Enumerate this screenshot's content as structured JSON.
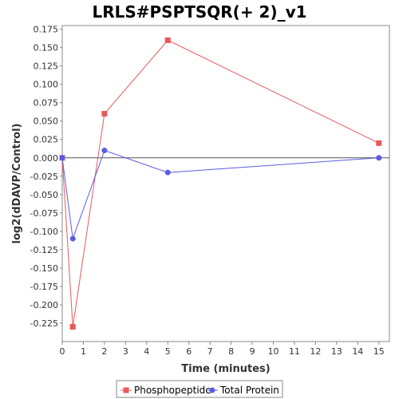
{
  "chart_data": {
    "type": "line",
    "title": "LRLS#PSPTSQR(+ 2)_v1",
    "xlabel": "Time (minutes)",
    "ylabel": "log2(dDAVP/Control)",
    "xlim": [
      0,
      15.5
    ],
    "ylim": [
      -0.25,
      0.18
    ],
    "x_ticks": [
      "0",
      "1",
      "2",
      "3",
      "4",
      "5",
      "6",
      "7",
      "8",
      "9",
      "10",
      "11",
      "12",
      "13",
      "14",
      "15"
    ],
    "y_ticks": [
      "0.175",
      "0.150",
      "0.125",
      "0.100",
      "0.075",
      "0.050",
      "0.025",
      "0.000",
      "-0.025",
      "-0.050",
      "-0.075",
      "-0.100",
      "-0.125",
      "-0.150",
      "-0.175",
      "-0.200",
      "-0.225"
    ],
    "grid": false,
    "legend_position": "bottom",
    "series": [
      {
        "name": "Phosphopeptide",
        "color": "#e8595a",
        "marker": "square",
        "x": [
          0,
          0.5,
          2,
          5,
          15
        ],
        "y": [
          0.0,
          -0.23,
          0.06,
          0.16,
          0.02
        ]
      },
      {
        "name": "Total Protein",
        "color": "#5b5be8",
        "marker": "circle",
        "x": [
          0,
          0.5,
          2,
          5,
          15
        ],
        "y": [
          0.0,
          -0.11,
          0.01,
          -0.02,
          0.0
        ]
      }
    ]
  }
}
